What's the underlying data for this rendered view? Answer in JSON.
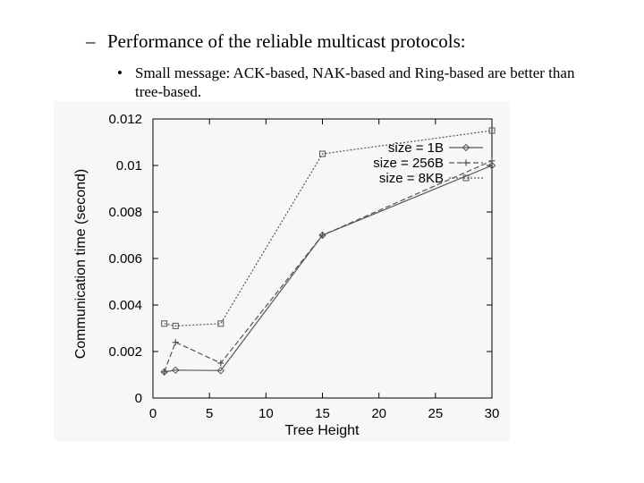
{
  "slide": {
    "bullet_dash": "–",
    "bullet1": "Performance of the reliable multicast protocols:",
    "bullet_dot": "•",
    "bullet2": "Small message: ACK-based, NAK-based and Ring-based are better than tree-based."
  },
  "chart_data": {
    "type": "line",
    "title": "",
    "xlabel": "Tree Height",
    "ylabel": "Communication time (second)",
    "xlim": [
      0,
      30
    ],
    "ylim": [
      0,
      0.012
    ],
    "xticks": [
      0,
      5,
      10,
      15,
      20,
      25,
      30
    ],
    "yticks": [
      0,
      0.002,
      0.004,
      0.006,
      0.008,
      0.01,
      0.012
    ],
    "ytick_labels": [
      "0",
      "0.002",
      "0.004",
      "0.006",
      "0.008",
      "0.01",
      "0.012"
    ],
    "grid": false,
    "legend_position": "top-right",
    "series": [
      {
        "name": "size = 1B",
        "marker": "diamond",
        "dash": "",
        "x": [
          1,
          2,
          6,
          15,
          30
        ],
        "y": [
          0.00112,
          0.0012,
          0.00118,
          0.007,
          0.01
        ]
      },
      {
        "name": "size = 256B",
        "marker": "plus",
        "dash": "6,3",
        "x": [
          1,
          2,
          6,
          15,
          30
        ],
        "y": [
          0.00112,
          0.0024,
          0.0015,
          0.007,
          0.0102
        ]
      },
      {
        "name": "size = 8KB",
        "marker": "square",
        "dash": "2,2",
        "x": [
          1,
          2,
          6,
          15,
          30
        ],
        "y": [
          0.0032,
          0.0031,
          0.0032,
          0.0105,
          0.0115
        ]
      }
    ],
    "line_color": "#555555"
  }
}
